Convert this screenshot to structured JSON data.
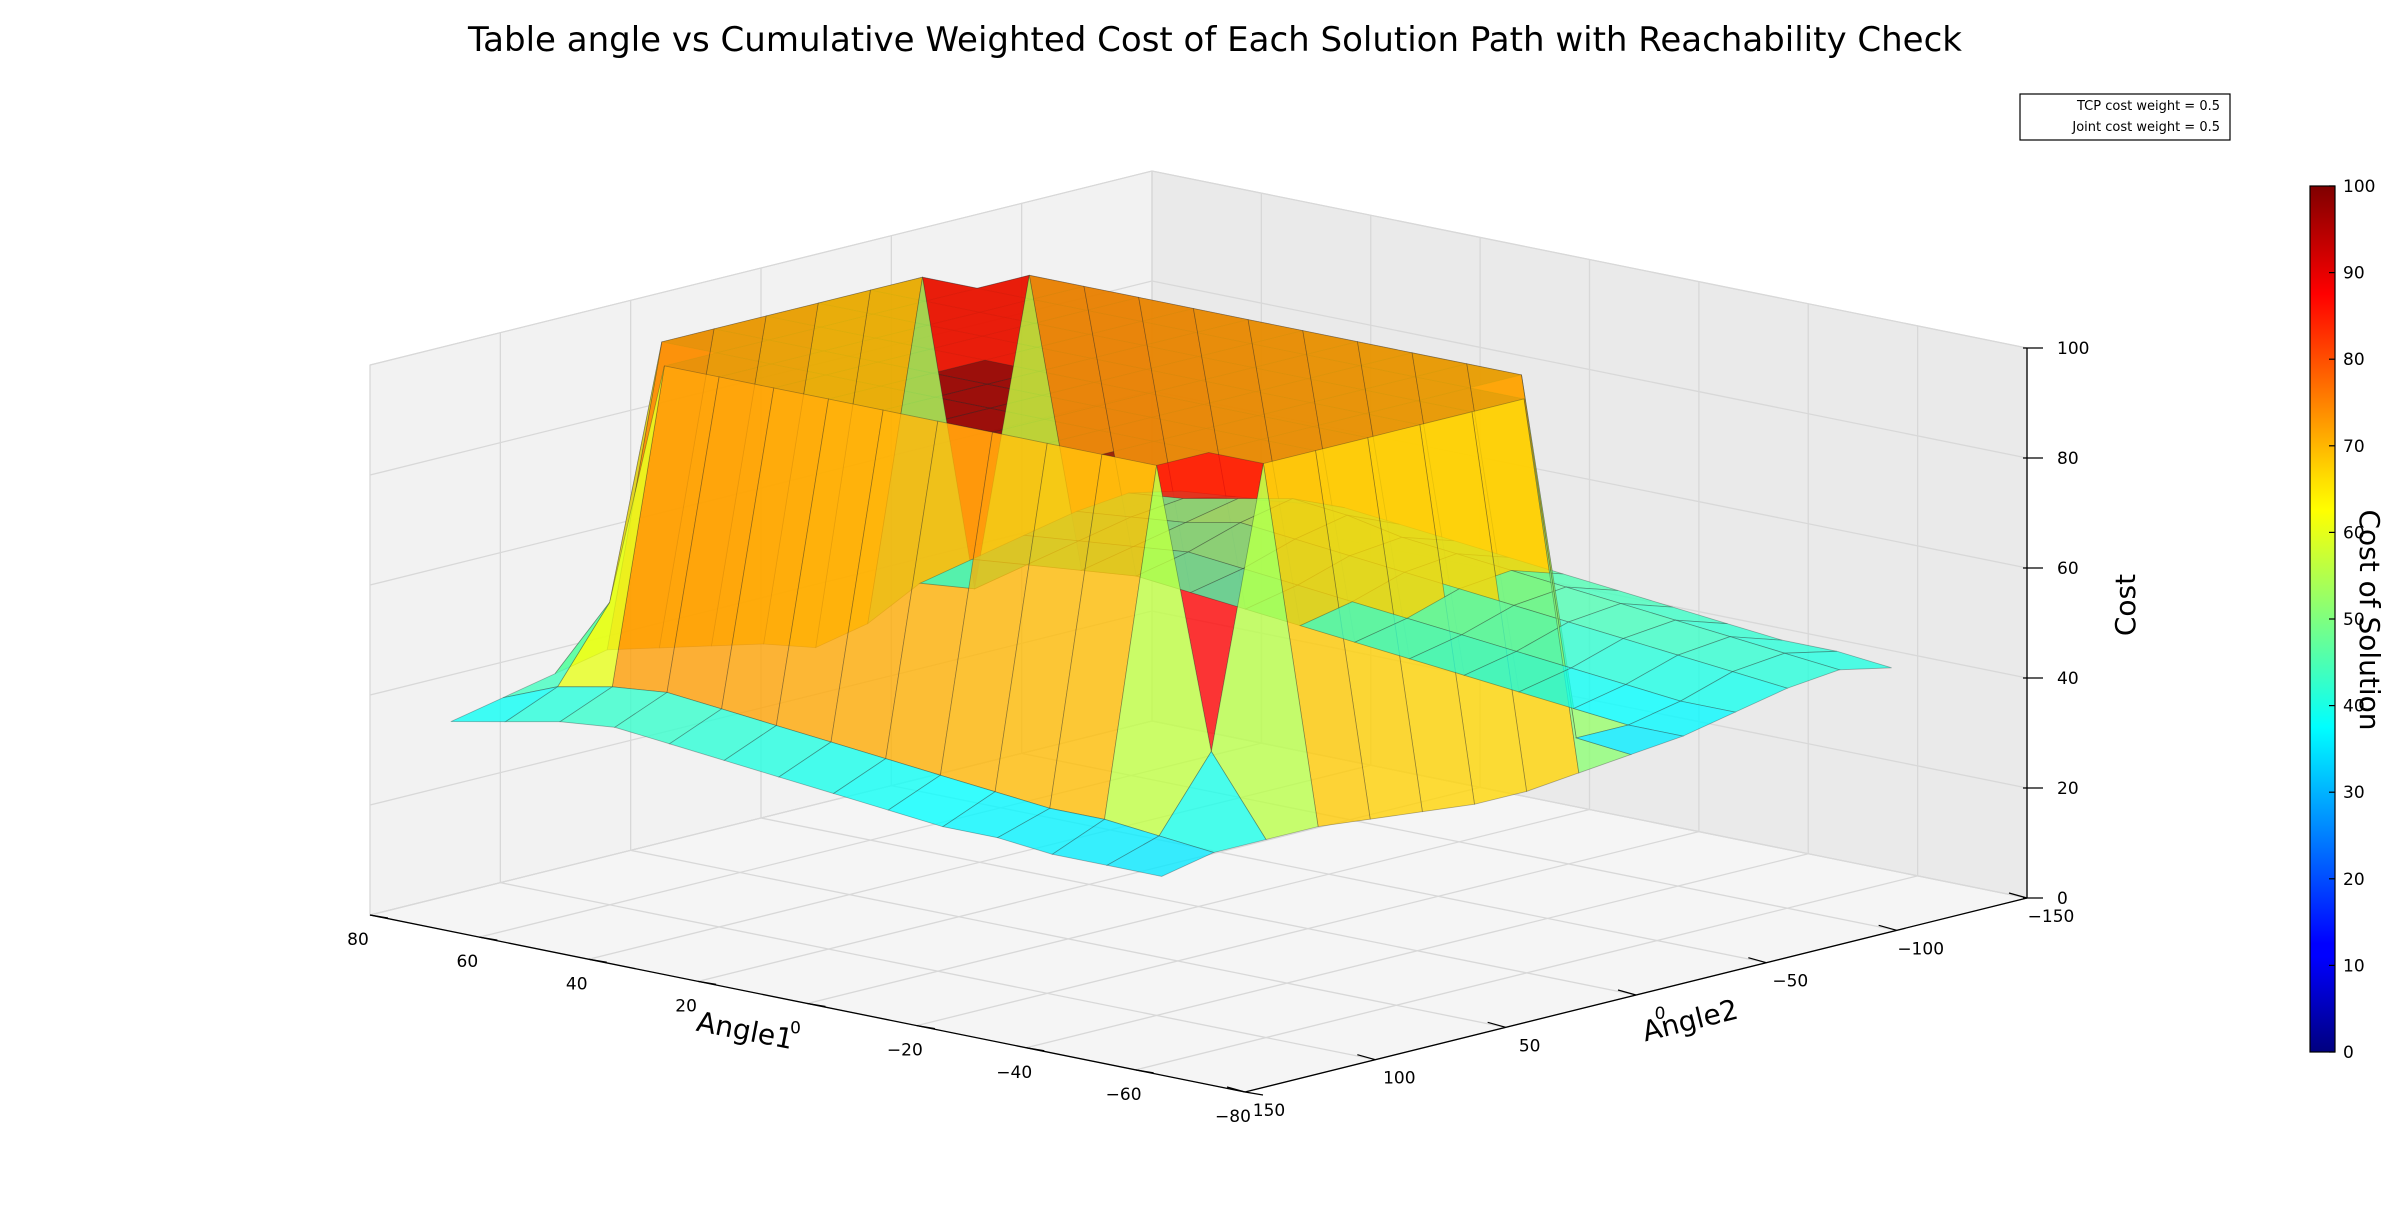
{
  "chart_data": {
    "type": "surface3d",
    "title": "Table angle vs Cumulative Weighted Cost of Each Solution Path with Reachability Check",
    "xlabel": "Angle1",
    "ylabel": "Angle2",
    "zlabel": "Cost",
    "colorbar_label": "Cost of Solution",
    "colormap": "jet",
    "xlim": [
      -80,
      80
    ],
    "ylim": [
      -150,
      150
    ],
    "zlim": [
      0,
      100
    ],
    "x_ticks": [
      "80",
      "60",
      "40",
      "20",
      "0",
      "−20",
      "−40",
      "−60",
      "−80"
    ],
    "y_ticks": [
      "150",
      "100",
      "50",
      "0",
      "−50",
      "−100",
      "−150"
    ],
    "z_ticks": [
      "0",
      "20",
      "40",
      "60",
      "80",
      "100"
    ],
    "colorbar_ticks": [
      "0",
      "10",
      "20",
      "30",
      "40",
      "50",
      "60",
      "70",
      "80",
      "90",
      "100"
    ],
    "legend_entries": [
      "TCP cost weight = 0.5",
      "Joint cost weight = 0.5"
    ],
    "legend_position": "top-right",
    "grid": true,
    "angle1": [
      70,
      60,
      50,
      40,
      30,
      20,
      10,
      0,
      -10,
      -20,
      -30,
      -40,
      -50,
      -60
    ],
    "angle2": [
      -140,
      -120,
      -100,
      -80,
      -60,
      -40,
      -20,
      0,
      20,
      40,
      60,
      80,
      100,
      120,
      140
    ],
    "cost": [
      [
        45,
        47,
        46,
        44,
        42,
        40,
        35,
        33,
        36,
        38,
        40,
        42,
        40,
        38,
        36
      ],
      [
        46,
        48,
        47,
        45,
        43,
        41,
        100,
        100,
        100,
        100,
        100,
        100,
        55,
        42,
        38
      ],
      [
        47,
        50,
        48,
        46,
        44,
        100,
        100,
        100,
        100,
        100,
        100,
        100,
        100,
        44,
        40
      ],
      [
        48,
        52,
        50,
        47,
        45,
        100,
        100,
        100,
        100,
        100,
        100,
        100,
        100,
        45,
        41
      ],
      [
        47,
        51,
        49,
        46,
        44,
        100,
        100,
        100,
        100,
        100,
        100,
        100,
        100,
        44,
        40
      ],
      [
        46,
        49,
        48,
        45,
        43,
        100,
        100,
        100,
        100,
        100,
        100,
        100,
        100,
        43,
        39
      ],
      [
        45,
        48,
        47,
        44,
        42,
        100,
        100,
        100,
        100,
        100,
        100,
        100,
        100,
        42,
        38
      ],
      [
        44,
        47,
        46,
        43,
        41,
        100,
        100,
        100,
        100,
        100,
        100,
        100,
        100,
        41,
        37
      ],
      [
        43,
        46,
        45,
        42,
        40,
        100,
        100,
        100,
        100,
        100,
        100,
        100,
        100,
        40,
        36
      ],
      [
        42,
        45,
        44,
        41,
        39,
        100,
        100,
        100,
        100,
        100,
        100,
        100,
        100,
        39,
        35
      ],
      [
        41,
        44,
        43,
        40,
        38,
        100,
        100,
        100,
        100,
        100,
        100,
        100,
        100,
        38,
        35
      ],
      [
        40,
        43,
        42,
        39,
        37,
        100,
        100,
        100,
        100,
        100,
        100,
        100,
        100,
        38,
        34
      ],
      [
        40,
        42,
        41,
        38,
        36,
        36,
        100,
        100,
        100,
        100,
        100,
        100,
        50,
        37,
        34
      ],
      [
        39,
        41,
        40,
        38,
        36,
        35,
        34,
        33,
        33,
        34,
        35,
        36,
        36,
        36,
        34
      ]
    ]
  }
}
